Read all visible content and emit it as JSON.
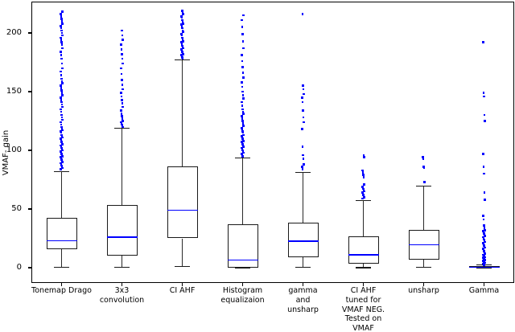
{
  "figure": {
    "background": "#ffffff",
    "spine_color": "#000000"
  },
  "chart_data": {
    "type": "boxplot",
    "title": "",
    "xlabel": "",
    "ylabel": "VMAF- gain",
    "ylim": [
      -13,
      227
    ],
    "yticks": [
      0,
      50,
      100,
      150,
      200
    ],
    "ytick_labels": [
      "0",
      "50",
      "100",
      "150",
      "200"
    ],
    "grid": false,
    "legend": "none",
    "box_color": "#1a1a1a",
    "median_color": "#0000ff",
    "flier_color": "#0000ff",
    "categories": [
      "Tonemap Drago",
      "3x3\nconvolution",
      "CI AHF",
      "Histogram\nequalizaion",
      "gamma\nand\nunsharp",
      "CI AHF\ntuned for\nVMAF NEG.\nTested on\nVMAF",
      "unsharp",
      "Gamma"
    ],
    "series": [
      {
        "name": "Tonemap Drago",
        "whislo": 0.5,
        "q1": 16,
        "med": 23,
        "q3": 42.5,
        "whishi": 82,
        "fliers": [
          84,
          85,
          86,
          87,
          88,
          89,
          90,
          91,
          92,
          93,
          94,
          95,
          96,
          97,
          98,
          99,
          100,
          101,
          102,
          103,
          104,
          105,
          106,
          107,
          109,
          110,
          111,
          112,
          113,
          115,
          116,
          117,
          119,
          120,
          122,
          124,
          126,
          128,
          130,
          133,
          135,
          137,
          139,
          141,
          143,
          145,
          147,
          149,
          151,
          153,
          155,
          157,
          159,
          161,
          164,
          167,
          170,
          174,
          178,
          181,
          184,
          187,
          190,
          192,
          194,
          196,
          198,
          200,
          202,
          204,
          206,
          208,
          210,
          212,
          214,
          216,
          218
        ]
      },
      {
        "name": "3x3 convolution",
        "whislo": 0.5,
        "q1": 10,
        "med": 26,
        "q3": 53.5,
        "whishi": 119,
        "fliers": [
          120,
          121,
          122,
          123,
          124,
          125,
          127,
          129,
          131,
          134,
          137,
          140,
          143,
          146,
          149,
          152,
          156,
          160,
          165,
          170,
          174,
          178,
          182,
          186,
          190,
          194,
          198,
          202
        ]
      },
      {
        "name": "CI AHF",
        "whislo": 1,
        "q1": 25,
        "med": 49,
        "q3": 86,
        "whishi": 177,
        "fliers": [
          178,
          179,
          180,
          181,
          182,
          183,
          184,
          185,
          186,
          187,
          188,
          189,
          190,
          192,
          193,
          195,
          196,
          198,
          199,
          201,
          202,
          204,
          205,
          207,
          208,
          210,
          211,
          213,
          214,
          216,
          217,
          219
        ]
      },
      {
        "name": "Histogram equalizaion",
        "whislo": 0,
        "q1": 0,
        "med": 6.5,
        "q3": 37,
        "whishi": 93.5,
        "fliers": [
          95,
          96,
          97,
          98,
          99,
          100,
          101,
          102,
          103,
          104,
          105,
          106,
          107,
          108,
          109,
          110,
          111,
          112,
          113,
          115,
          116,
          118,
          119,
          121,
          123,
          125,
          127,
          129,
          131,
          133,
          135,
          138,
          141,
          144,
          147,
          150,
          154,
          158,
          162,
          166,
          171,
          176,
          181,
          187,
          193,
          199,
          205,
          211,
          215
        ]
      },
      {
        "name": "gamma and unsharp",
        "whislo": 0.5,
        "q1": 9,
        "med": 22.5,
        "q3": 38.5,
        "whishi": 81,
        "fliers": [
          84,
          86,
          88,
          93,
          96,
          103,
          118,
          124,
          128,
          134,
          141,
          145,
          148,
          152,
          155,
          216
        ]
      },
      {
        "name": "CI AHF tuned for VMAF NEG. Tested on VMAF",
        "whislo": 0,
        "q1": 3.5,
        "med": 11,
        "q3": 27,
        "whishi": 57,
        "fliers": [
          59,
          60,
          61,
          62,
          63,
          64,
          65,
          66,
          67,
          68,
          69,
          71,
          77,
          79,
          81,
          83,
          94,
          96
        ]
      },
      {
        "name": "unsharp",
        "whislo": 0.5,
        "q1": 7,
        "med": 19.5,
        "q3": 32,
        "whishi": 69.5,
        "fliers": [
          73,
          85,
          86,
          93,
          94
        ]
      },
      {
        "name": "Gamma",
        "whislo": 0,
        "q1": 0,
        "med": 0.4,
        "q3": 1.2,
        "whishi": 2.5,
        "fliers": [
          2,
          2.5,
          3,
          3.5,
          4,
          4.5,
          5,
          5.5,
          6,
          6.5,
          7,
          7.5,
          8,
          8.5,
          9,
          9.5,
          10,
          10.5,
          11,
          12,
          13,
          14,
          15,
          16,
          17,
          18,
          19,
          20,
          21,
          22,
          23,
          24,
          25,
          26,
          27,
          28,
          29,
          30,
          31,
          32,
          34,
          36,
          41,
          44,
          58,
          64,
          80,
          86,
          97,
          125,
          130,
          146,
          149,
          192
        ]
      }
    ]
  }
}
